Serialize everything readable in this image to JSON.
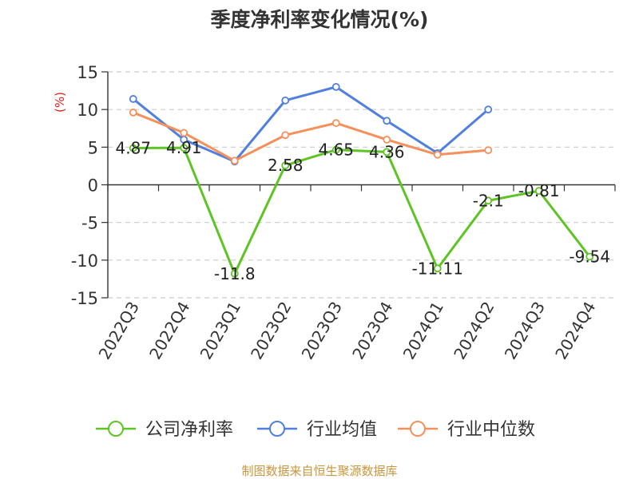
{
  "chart_data": {
    "type": "line",
    "title": "季度净利率变化情况(%)",
    "ylabel": "(%)",
    "xlabel": "",
    "ylim": [
      -15,
      15
    ],
    "yticks": [
      15,
      10,
      5,
      0,
      -5,
      -10,
      -15
    ],
    "categories": [
      "2022Q3",
      "2022Q4",
      "2023Q1",
      "2023Q2",
      "2023Q3",
      "2023Q4",
      "2024Q1",
      "2024Q2",
      "2024Q3",
      "2024Q4"
    ],
    "grid": true,
    "legend_position": "bottom",
    "series": [
      {
        "name": "公司净利率",
        "color": "#5ec424",
        "values": [
          4.87,
          4.91,
          -11.8,
          2.58,
          4.65,
          4.36,
          -11.11,
          -2.1,
          -0.81,
          -9.54
        ],
        "labels": [
          "4.87",
          "4.91",
          "-11.8",
          "2.58",
          "4.65",
          "4.36",
          "-11.11",
          "-2.1",
          "-0.81",
          "-9.54"
        ]
      },
      {
        "name": "行业均值",
        "color": "#4f7fdf",
        "values": [
          11.4,
          6.0,
          3.1,
          11.2,
          13.0,
          8.5,
          4.2,
          10.0,
          null,
          null
        ]
      },
      {
        "name": "行业中位数",
        "color": "#f5905a",
        "values": [
          9.6,
          6.9,
          3.2,
          6.6,
          8.2,
          6.0,
          4.0,
          4.6,
          null,
          null
        ]
      }
    ]
  },
  "footer": {
    "source": "制图数据来自恒生聚源数据库",
    "source_color": "#c8963c"
  }
}
